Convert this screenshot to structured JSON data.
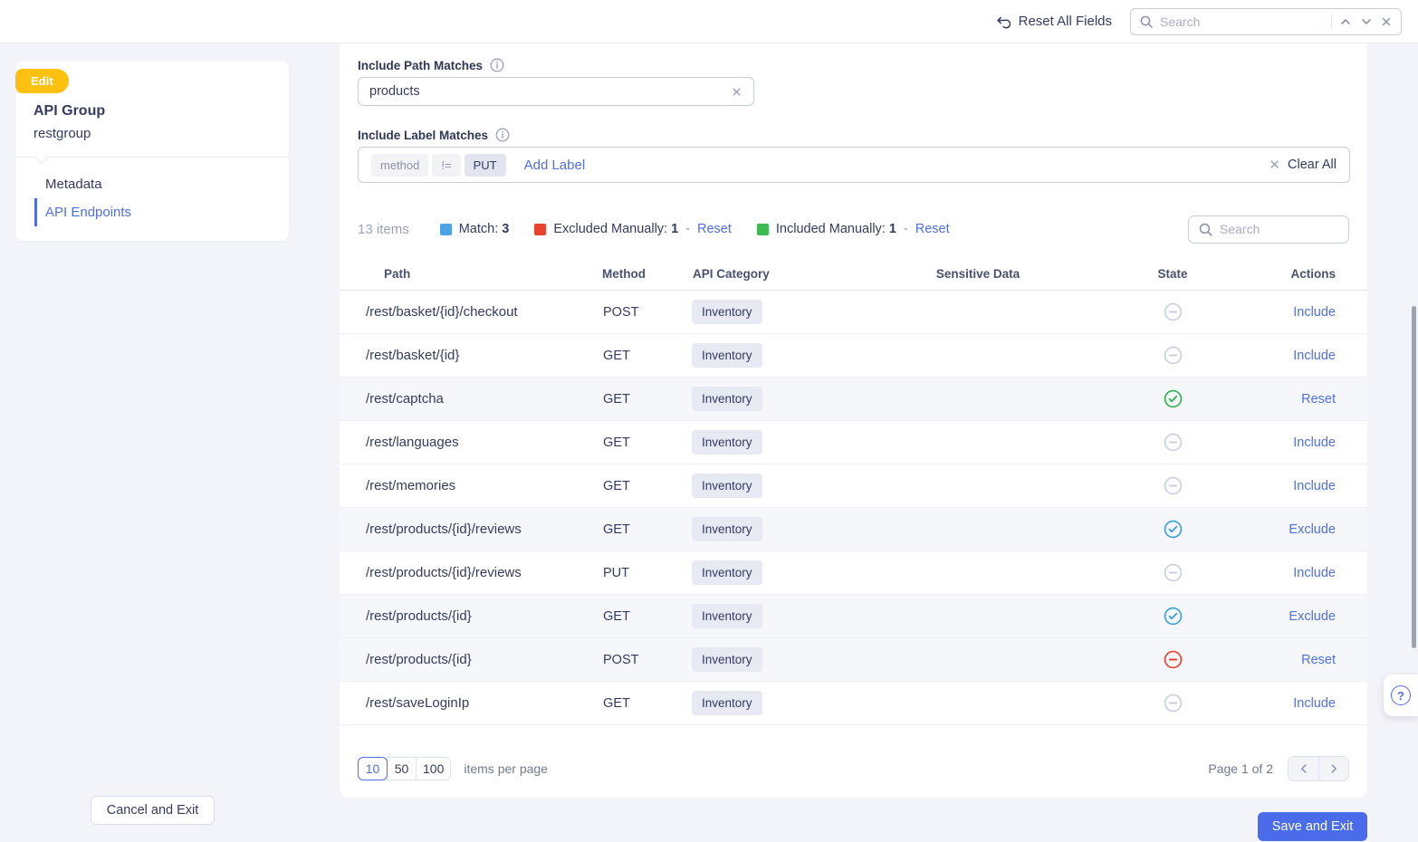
{
  "topbar": {
    "reset_all_label": "Reset All Fields",
    "search_placeholder": "Search"
  },
  "sidebar": {
    "badge_label": "Edit",
    "title": "API Group",
    "subtitle": "restgroup",
    "nav": [
      {
        "label": "Metadata",
        "active": false
      },
      {
        "label": "API Endpoints",
        "active": true
      }
    ]
  },
  "filters": {
    "path_label": "Include Path Matches",
    "path_value": "products",
    "labels_label": "Include Label Matches",
    "label_chips": [
      "method",
      "!=",
      "PUT"
    ],
    "add_label_link": "Add Label",
    "clear_all_label": "Clear All"
  },
  "summary": {
    "count_text": "13 items",
    "legend": [
      {
        "label": "Match:",
        "count": "3",
        "color": "#4da3e8",
        "has_reset": false
      },
      {
        "label": "Excluded Manually:",
        "count": "1",
        "color": "#e8432d",
        "has_reset": true
      },
      {
        "label": "Included Manually:",
        "count": "1",
        "color": "#3cb950",
        "has_reset": true
      }
    ],
    "reset_link": "Reset",
    "search_placeholder": "Search"
  },
  "table": {
    "headers": [
      "Path",
      "Method",
      "API Category",
      "Sensitive Data",
      "State",
      "Actions"
    ],
    "state_colors": {
      "none": "#c9cfde",
      "included": "#2eb550",
      "match": "#38a3e4",
      "excluded": "#e8432d"
    },
    "rows": [
      {
        "path": "/rest/basket/{id}/checkout",
        "method": "POST",
        "category": "Inventory",
        "sensitive_data": "",
        "state": "none",
        "action": "Include",
        "highlighted": false
      },
      {
        "path": "/rest/basket/{id}",
        "method": "GET",
        "category": "Inventory",
        "sensitive_data": "",
        "state": "none",
        "action": "Include",
        "highlighted": false
      },
      {
        "path": "/rest/captcha",
        "method": "GET",
        "category": "Inventory",
        "sensitive_data": "",
        "state": "included",
        "action": "Reset",
        "highlighted": true
      },
      {
        "path": "/rest/languages",
        "method": "GET",
        "category": "Inventory",
        "sensitive_data": "",
        "state": "none",
        "action": "Include",
        "highlighted": false
      },
      {
        "path": "/rest/memories",
        "method": "GET",
        "category": "Inventory",
        "sensitive_data": "",
        "state": "none",
        "action": "Include",
        "highlighted": false
      },
      {
        "path": "/rest/products/{id}/reviews",
        "method": "GET",
        "category": "Inventory",
        "sensitive_data": "",
        "state": "match",
        "action": "Exclude",
        "highlighted": true
      },
      {
        "path": "/rest/products/{id}/reviews",
        "method": "PUT",
        "category": "Inventory",
        "sensitive_data": "",
        "state": "none",
        "action": "Include",
        "highlighted": false
      },
      {
        "path": "/rest/products/{id}",
        "method": "GET",
        "category": "Inventory",
        "sensitive_data": "",
        "state": "match",
        "action": "Exclude",
        "highlighted": true
      },
      {
        "path": "/rest/products/{id}",
        "method": "POST",
        "category": "Inventory",
        "sensitive_data": "",
        "state": "excluded",
        "action": "Reset",
        "highlighted": true
      },
      {
        "path": "/rest/saveLoginIp",
        "method": "GET",
        "category": "Inventory",
        "sensitive_data": "",
        "state": "none",
        "action": "Include",
        "highlighted": false
      }
    ]
  },
  "pagination": {
    "page_sizes": [
      "10",
      "50",
      "100"
    ],
    "active_size": "10",
    "suffix_label": "items per page",
    "page_info": "Page 1 of 2"
  },
  "footer": {
    "cancel_label": "Cancel and Exit",
    "save_label": "Save and Exit"
  },
  "help": {
    "icon_label": "?"
  }
}
